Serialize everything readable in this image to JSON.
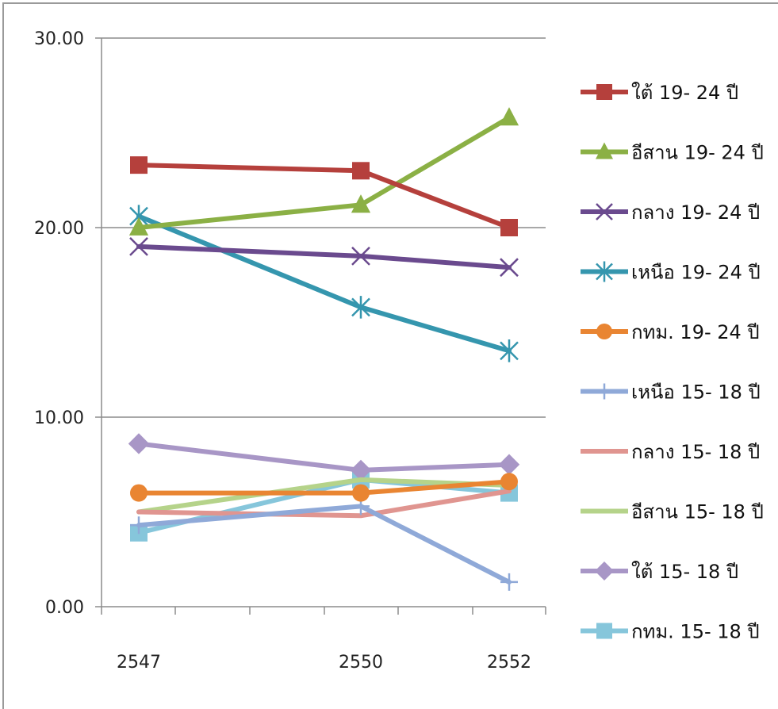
{
  "chart_data": {
    "type": "line",
    "title": "",
    "xlabel": "",
    "ylabel": "",
    "x": [
      "2547",
      "2550",
      "2552"
    ],
    "ylim": [
      0,
      30
    ],
    "y_ticks": [
      "0.00",
      "10.00",
      "20.00",
      "30.00"
    ],
    "grid": true,
    "legend_position": "right",
    "series": [
      {
        "name": "ใต้ 19- 24 ปี",
        "values": [
          23.3,
          23.0,
          20.0
        ],
        "color": "#B5403C",
        "marker": "square"
      },
      {
        "name": "อีสาน 19- 24 ปี",
        "values": [
          20.0,
          21.2,
          25.8
        ],
        "color": "#8BB045",
        "marker": "triangle"
      },
      {
        "name": "กลาง 19- 24 ปี",
        "values": [
          19.0,
          18.5,
          17.9
        ],
        "color": "#6A4A8E",
        "marker": "x"
      },
      {
        "name": "เหนือ 19- 24 ปี",
        "values": [
          20.6,
          15.8,
          13.5
        ],
        "color": "#3596AE",
        "marker": "asterisk"
      },
      {
        "name": "กทม. 19- 24 ปี",
        "values": [
          6.0,
          6.0,
          6.6
        ],
        "color": "#E98532",
        "marker": "circle"
      },
      {
        "name": "เหนือ 15- 18 ปี",
        "values": [
          4.3,
          5.3,
          1.3
        ],
        "color": "#8FA9D8",
        "marker": "plus"
      },
      {
        "name": "กลาง 15- 18 ปี",
        "values": [
          5.0,
          4.8,
          6.1
        ],
        "color": "#E09590",
        "marker": "none"
      },
      {
        "name": "อีสาน 15- 18 ปี",
        "values": [
          5.0,
          6.7,
          6.4
        ],
        "color": "#B5D38A",
        "marker": "none"
      },
      {
        "name": "ใต้ 15- 18 ปี",
        "values": [
          8.6,
          7.2,
          7.5
        ],
        "color": "#A896C6",
        "marker": "diamond"
      },
      {
        "name": "กทม. 15- 18 ปี",
        "values": [
          3.9,
          6.7,
          6.0
        ],
        "color": "#86C6DB",
        "marker": "square"
      }
    ]
  }
}
